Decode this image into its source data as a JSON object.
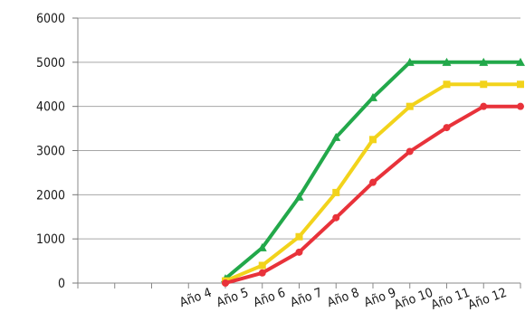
{
  "chart_data": {
    "type": "line",
    "categories": [
      "",
      "",
      "",
      "Año 4",
      "Año 5",
      "Año 6",
      "Año 7",
      "Año 8",
      "Año 9",
      "Año 10",
      "Año 11",
      "Año 12"
    ],
    "x": [
      4.5,
      5.5,
      6.5,
      7.5,
      8.5,
      9.5,
      10.5,
      11.5,
      12.5
    ],
    "series": [
      {
        "color": "#22a84a",
        "marker": "triangle",
        "values": [
          100,
          800,
          1950,
          3300,
          4200,
          5000,
          5000,
          5000,
          5000
        ]
      },
      {
        "color": "#f2d31b",
        "marker": "square",
        "values": [
          50,
          400,
          1050,
          2050,
          3250,
          4000,
          4500,
          4500,
          4500
        ]
      },
      {
        "color": "#e8323a",
        "marker": "circle",
        "values": [
          0,
          230,
          700,
          1480,
          2280,
          2980,
          3520,
          4000,
          4000
        ]
      }
    ],
    "ylim": [
      0,
      6000
    ],
    "yticks": [
      0,
      1000,
      2000,
      3000,
      4000,
      5000,
      6000
    ],
    "xlim": [
      0.5,
      12.5
    ],
    "grid": "horizontal",
    "legend": "none",
    "title": "",
    "xlabel": "",
    "ylabel": ""
  }
}
